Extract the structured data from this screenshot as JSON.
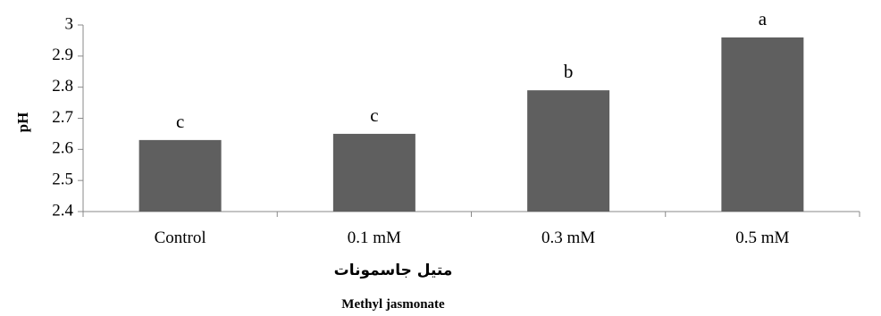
{
  "chart_data": {
    "type": "bar",
    "categories": [
      "Control",
      "0.1 mM",
      "0.3 mM",
      "0.5 mM"
    ],
    "values": [
      2.63,
      2.65,
      2.79,
      2.96
    ],
    "data_labels": [
      "c",
      "c",
      "b",
      "a"
    ],
    "title": "",
    "ylabel": "pH",
    "xlabel_fa": "متیل جاسمونات",
    "xlabel": "Methyl jasmonate",
    "ylim": [
      2.4,
      3.0
    ],
    "yticks": [
      2.4,
      2.5,
      2.6,
      2.7,
      2.8,
      2.9,
      3.0
    ],
    "ytick_labels": [
      "2.4",
      "2.5",
      "2.6",
      "2.7",
      "2.8",
      "2.9",
      "3"
    ],
    "bar_color": "#5f5f5f",
    "grid": false,
    "legend": "none"
  }
}
